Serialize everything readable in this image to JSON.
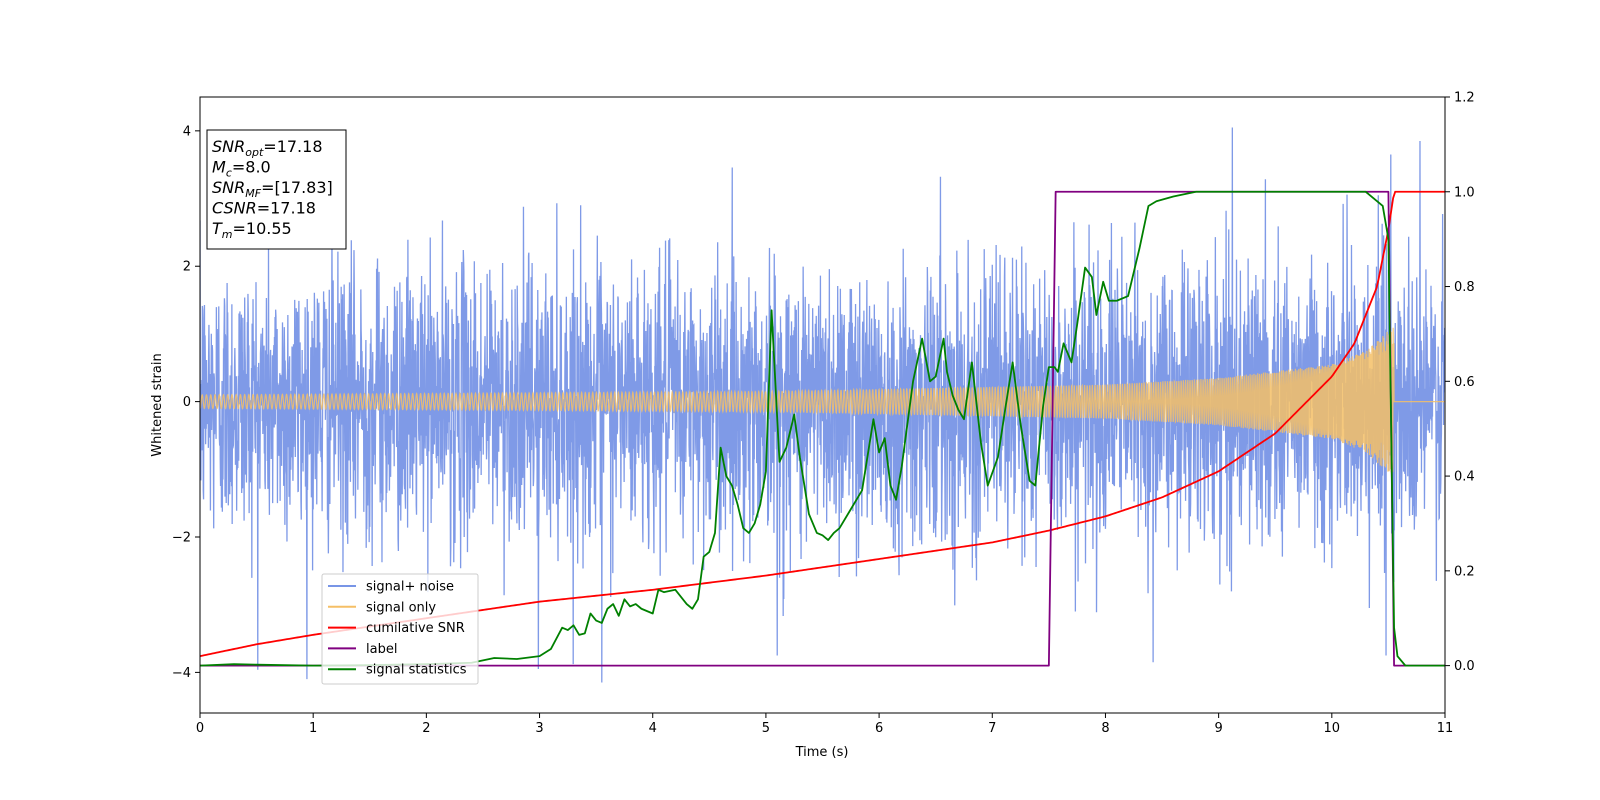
{
  "chart_data": {
    "type": "line",
    "title": "",
    "xlabel": "Time (s)",
    "ylabel": "Whitened strain",
    "y2label": "",
    "xlim": [
      0,
      11
    ],
    "ylim": [
      -4.6,
      4.5
    ],
    "y2lim": [
      -0.1,
      1.2
    ],
    "xticks": [
      0,
      1,
      2,
      3,
      4,
      5,
      6,
      7,
      8,
      9,
      10,
      11
    ],
    "yticks": [
      4,
      2,
      0,
      -2,
      -4
    ],
    "y2ticks": [
      1.2,
      1.0,
      0.8,
      0.6,
      0.4,
      0.2,
      0.0
    ],
    "grid": false,
    "legend_position": "lower-left",
    "annotations": [
      {
        "base": "SNR",
        "sub": "opt",
        "value": "=17.18"
      },
      {
        "base": "M",
        "sub": "c",
        "value": "=8.0"
      },
      {
        "base": "SNR",
        "sub": "MF",
        "value": "=[17.83]"
      },
      {
        "base": "CSNR",
        "sub": "",
        "value": "=17.18"
      },
      {
        "base": "T",
        "sub": "m",
        "value": "=10.55"
      }
    ],
    "series": [
      {
        "name": "signal+ noise",
        "axis": "left",
        "color": "#7895e6",
        "description": "whitened noisy strain, roughly +/-1 sigma band with peaks to about 3.6 (max about 4.1 near t=9.12, min about -4.15 near t=3.55)",
        "noise_std": 1.0,
        "peaks": [
          {
            "x": 9.12,
            "y": 4.05
          },
          {
            "x": 10.78,
            "y": 3.85
          },
          {
            "x": 10.52,
            "y": 3.65
          },
          {
            "x": 3.55,
            "y": -4.15
          },
          {
            "x": 2.99,
            "y": -3.95
          },
          {
            "x": 8.42,
            "y": -3.85
          },
          {
            "x": 10.48,
            "y": -3.75
          },
          {
            "x": 5.1,
            "y": -3.75
          }
        ]
      },
      {
        "name": "signal only",
        "axis": "left",
        "color": "#f5bf66",
        "description": "chirp with amplitude rising from about 0.1 to about 1.1, merging at t=10.55 then flat zero",
        "amplitude": {
          "x": [
            0,
            5,
            8,
            9,
            10,
            10.3,
            10.5,
            10.55,
            11
          ],
          "y": [
            0.1,
            0.15,
            0.25,
            0.35,
            0.55,
            0.75,
            1.05,
            1.1,
            0
          ]
        }
      },
      {
        "name": "cumilative SNR",
        "axis": "right",
        "color": "#ff0000",
        "x": [
          0,
          0.5,
          1,
          2,
          3,
          4,
          5,
          6,
          7,
          7.5,
          8,
          8.5,
          9,
          9.5,
          10,
          10.2,
          10.4,
          10.5,
          10.55,
          11
        ],
        "y": [
          0.02,
          0.045,
          0.065,
          0.1,
          0.135,
          0.16,
          0.19,
          0.225,
          0.26,
          0.285,
          0.315,
          0.355,
          0.41,
          0.49,
          0.61,
          0.68,
          0.8,
          0.92,
          1.0,
          1.0
        ]
      },
      {
        "name": "label",
        "axis": "right",
        "color": "#800080",
        "x": [
          0,
          7.5,
          7.56,
          10.5,
          10.55,
          11
        ],
        "y": [
          0,
          0,
          1,
          1,
          0,
          0
        ]
      },
      {
        "name": "signal statistics",
        "axis": "right",
        "color": "#008000",
        "x": [
          0,
          0.3,
          0.5,
          1.0,
          1.5,
          2.0,
          2.4,
          2.6,
          2.8,
          3.0,
          3.1,
          3.2,
          3.25,
          3.3,
          3.35,
          3.4,
          3.45,
          3.5,
          3.55,
          3.6,
          3.65,
          3.7,
          3.75,
          3.8,
          3.85,
          3.9,
          4.0,
          4.05,
          4.1,
          4.2,
          4.3,
          4.35,
          4.4,
          4.45,
          4.5,
          4.55,
          4.6,
          4.65,
          4.7,
          4.75,
          4.8,
          4.85,
          4.9,
          4.95,
          5.0,
          5.05,
          5.12,
          5.18,
          5.25,
          5.3,
          5.38,
          5.45,
          5.5,
          5.55,
          5.6,
          5.65,
          5.75,
          5.85,
          5.95,
          6.0,
          6.05,
          6.1,
          6.15,
          6.2,
          6.3,
          6.38,
          6.45,
          6.5,
          6.57,
          6.6,
          6.65,
          6.7,
          6.75,
          6.82,
          6.9,
          6.96,
          7.05,
          7.12,
          7.18,
          7.25,
          7.33,
          7.38,
          7.45,
          7.5,
          7.55,
          7.58,
          7.63,
          7.7,
          7.75,
          7.82,
          7.88,
          7.92,
          7.98,
          8.03,
          8.1,
          8.2,
          8.3,
          8.38,
          8.45,
          8.6,
          8.8,
          9.0,
          9.5,
          10.0,
          10.3,
          10.45,
          10.5,
          10.55,
          10.58,
          10.65,
          10.8,
          11
        ],
        "y": [
          0.0,
          0.003,
          0.002,
          0.0,
          0.001,
          0.003,
          0.006,
          0.016,
          0.014,
          0.02,
          0.035,
          0.08,
          0.075,
          0.085,
          0.065,
          0.068,
          0.11,
          0.095,
          0.09,
          0.12,
          0.13,
          0.105,
          0.14,
          0.125,
          0.13,
          0.12,
          0.11,
          0.16,
          0.155,
          0.16,
          0.13,
          0.12,
          0.14,
          0.23,
          0.24,
          0.28,
          0.46,
          0.4,
          0.38,
          0.34,
          0.29,
          0.28,
          0.3,
          0.34,
          0.41,
          0.75,
          0.43,
          0.46,
          0.53,
          0.44,
          0.32,
          0.28,
          0.275,
          0.265,
          0.28,
          0.29,
          0.33,
          0.37,
          0.52,
          0.45,
          0.48,
          0.38,
          0.35,
          0.42,
          0.6,
          0.69,
          0.6,
          0.61,
          0.69,
          0.62,
          0.57,
          0.54,
          0.52,
          0.64,
          0.47,
          0.38,
          0.44,
          0.55,
          0.64,
          0.51,
          0.39,
          0.38,
          0.55,
          0.63,
          0.63,
          0.62,
          0.68,
          0.64,
          0.72,
          0.84,
          0.82,
          0.74,
          0.81,
          0.77,
          0.77,
          0.78,
          0.88,
          0.97,
          0.98,
          0.99,
          1.0,
          1.0,
          1.0,
          1.0,
          1.0,
          0.97,
          0.9,
          0.08,
          0.02,
          0.0,
          0.0,
          0.0
        ]
      }
    ]
  }
}
